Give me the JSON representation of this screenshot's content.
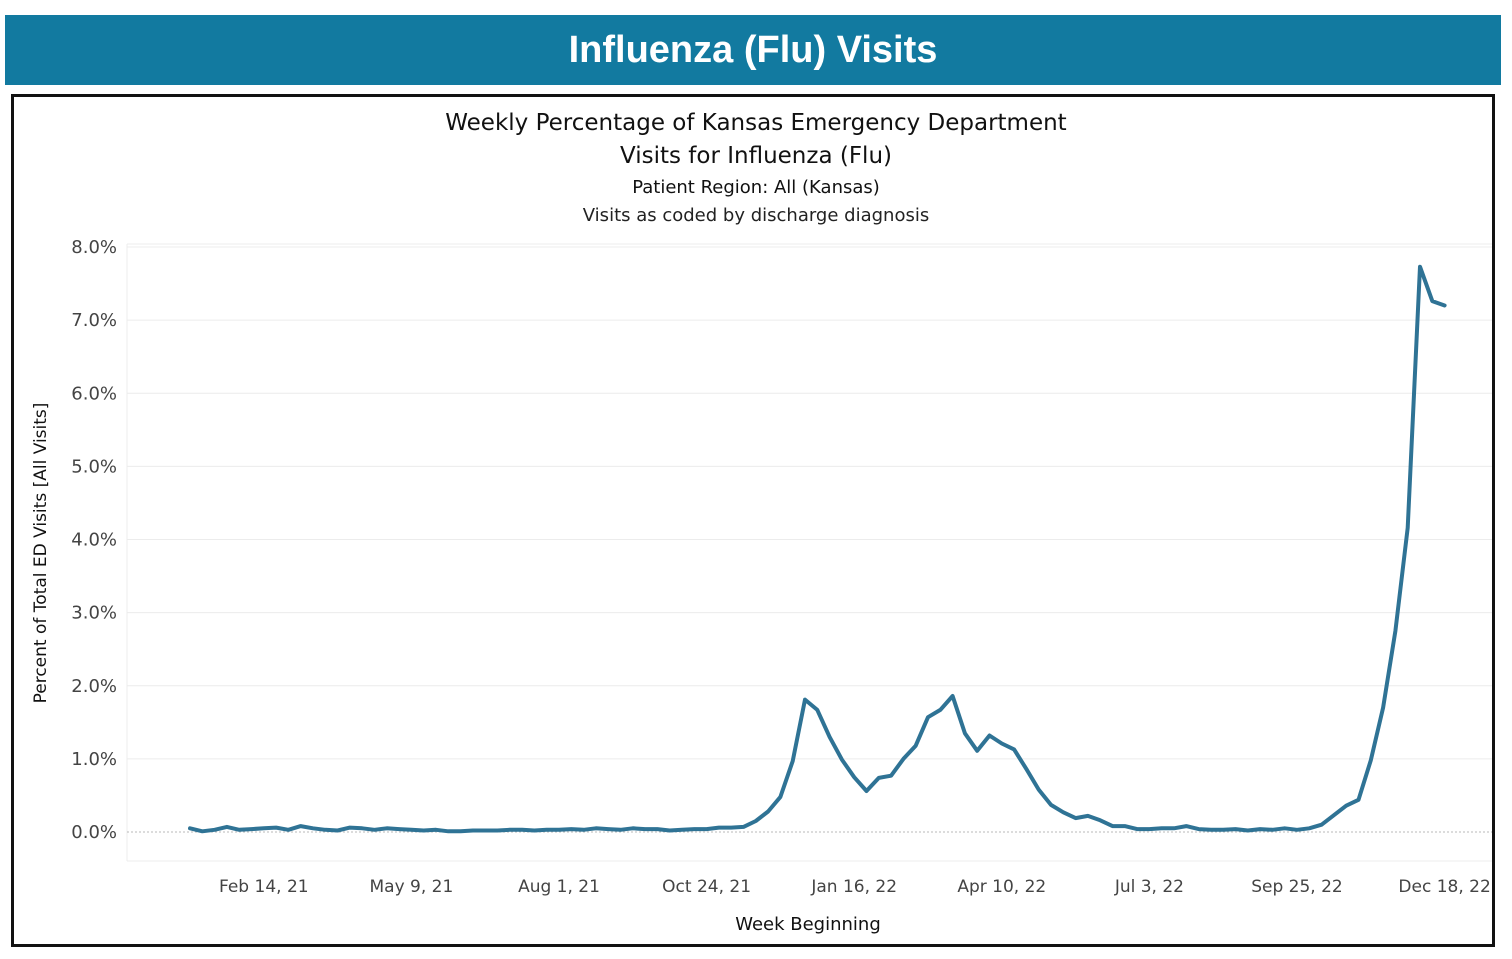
{
  "banner": {
    "title": "Influenza (Flu) Visits"
  },
  "colors": {
    "banner_bg": "#127aa0",
    "line": "#2f7395",
    "grid": "#ececec",
    "zero_line": "#b9b9b9"
  },
  "chart_data": {
    "type": "line",
    "title_line1": "Weekly Percentage of Kansas Emergency Department",
    "title_line2": "Visits for Influenza (Flu)",
    "subtitle": "Patient Region: All (Kansas)",
    "note": "Visits as coded by discharge diagnosis",
    "xlabel": "Week Beginning",
    "ylabel": "Percent of Total ED Visits [All Visits]",
    "ylim": [
      0,
      8
    ],
    "y_ticks": [
      0,
      1,
      2,
      3,
      4,
      5,
      6,
      7,
      8
    ],
    "y_tick_labels": [
      "0.0%",
      "1.0%",
      "2.0%",
      "3.0%",
      "4.0%",
      "5.0%",
      "6.0%",
      "7.0%",
      "8.0%"
    ],
    "x_tick_indices": [
      6,
      18,
      30,
      42,
      54,
      66,
      78,
      90,
      102
    ],
    "x_tick_labels": [
      "Feb 14, 21",
      "May 9, 21",
      "Aug 1, 21",
      "Oct 24, 21",
      "Jan 16, 22",
      "Apr 10, 22",
      "Jul 3, 22",
      "Sep 25, 22",
      "Dec 18, 22"
    ],
    "x_range_weeks": [
      -5,
      105
    ],
    "grid": "horizontal",
    "series": [
      {
        "name": "Influenza (Flu)",
        "values": [
          0.05,
          0.01,
          0.03,
          0.07,
          0.03,
          0.04,
          0.05,
          0.06,
          0.03,
          0.08,
          0.05,
          0.03,
          0.02,
          0.06,
          0.05,
          0.03,
          0.05,
          0.04,
          0.03,
          0.02,
          0.03,
          0.01,
          0.01,
          0.02,
          0.02,
          0.02,
          0.03,
          0.03,
          0.02,
          0.03,
          0.03,
          0.04,
          0.03,
          0.05,
          0.04,
          0.03,
          0.05,
          0.04,
          0.04,
          0.02,
          0.03,
          0.04,
          0.04,
          0.06,
          0.06,
          0.07,
          0.15,
          0.28,
          0.48,
          0.97,
          1.81,
          1.67,
          1.3,
          0.99,
          0.75,
          0.56,
          0.74,
          0.77,
          1.0,
          1.18,
          1.57,
          1.67,
          1.86,
          1.35,
          1.11,
          1.32,
          1.21,
          1.13,
          0.86,
          0.58,
          0.37,
          0.27,
          0.19,
          0.22,
          0.16,
          0.08,
          0.08,
          0.04,
          0.04,
          0.05,
          0.05,
          0.08,
          0.04,
          0.03,
          0.03,
          0.04,
          0.02,
          0.04,
          0.03,
          0.05,
          0.03,
          0.05,
          0.1,
          0.23,
          0.36,
          0.44,
          0.98,
          1.7,
          2.75,
          4.16,
          7.73,
          7.26,
          7.2
        ]
      }
    ]
  }
}
